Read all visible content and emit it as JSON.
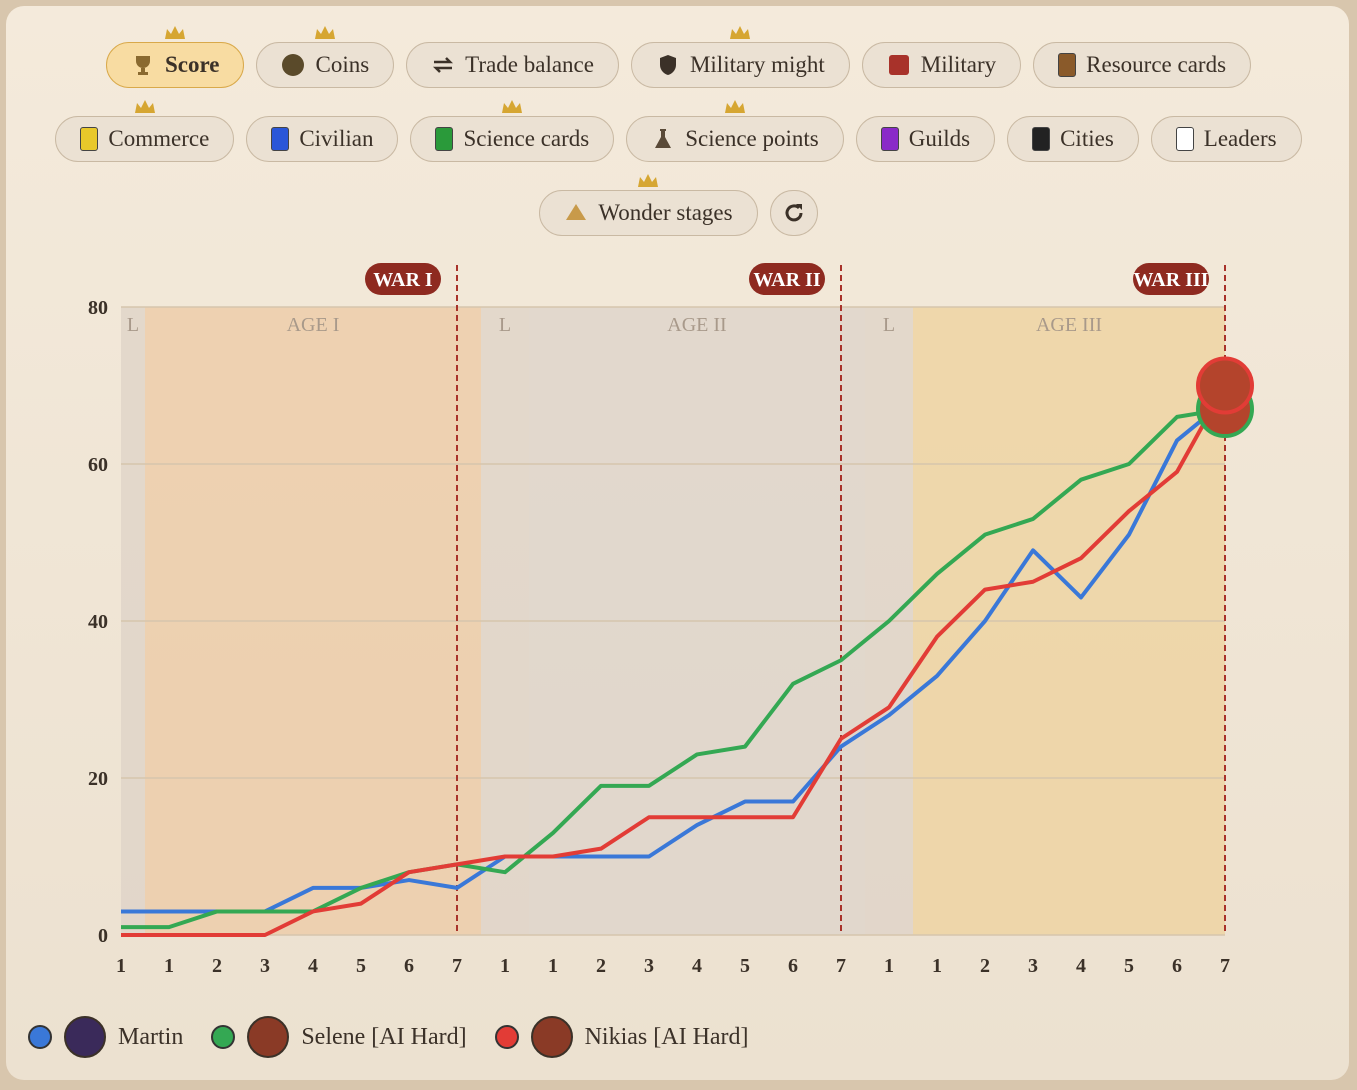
{
  "buttons": {
    "row1": [
      "Score",
      "Coins",
      "Trade balance",
      "Military might",
      "Military",
      "Resource cards"
    ],
    "row2": [
      "Commerce",
      "Civilian",
      "Science cards",
      "Science points",
      "Guilds",
      "Cities",
      "Leaders"
    ],
    "row3": [
      "Wonder stages"
    ]
  },
  "chart_data": {
    "type": "line",
    "categories": [
      "1",
      "1",
      "2",
      "3",
      "4",
      "5",
      "6",
      "7",
      "1",
      "1",
      "2",
      "3",
      "4",
      "5",
      "6",
      "7",
      "1",
      "1",
      "2",
      "3",
      "4",
      "5",
      "6",
      "7"
    ],
    "periods": [
      {
        "leader": "L",
        "label": "AGE I",
        "war": "WAR I",
        "color": "#ecc9a4"
      },
      {
        "leader": "L",
        "label": "AGE II",
        "war": "WAR II",
        "color": "#dcd3c9"
      },
      {
        "leader": "L",
        "label": "AGE III",
        "war": "WAR III",
        "color": "#eed29c"
      }
    ],
    "ylim": [
      0,
      80
    ],
    "yticks": [
      0,
      20,
      40,
      60,
      80
    ],
    "grid": true,
    "series": [
      {
        "name": "Martin",
        "color": "#3a78d8",
        "values": [
          3,
          3,
          3,
          3,
          6,
          6,
          7,
          6,
          10,
          10,
          10,
          10,
          14,
          17,
          17,
          24,
          28,
          33,
          40,
          49,
          43,
          51,
          63,
          68
        ]
      },
      {
        "name": "Selene [AI Hard]",
        "color": "#34a853",
        "values": [
          1,
          1,
          3,
          3,
          3,
          6,
          8,
          9,
          8,
          13,
          19,
          19,
          23,
          24,
          32,
          35,
          40,
          46,
          51,
          53,
          58,
          60,
          66,
          67
        ]
      },
      {
        "name": "Nikias [AI Hard]",
        "color": "#e23c36",
        "values": [
          0,
          0,
          0,
          0,
          3,
          4,
          8,
          9,
          10,
          10,
          11,
          15,
          15,
          15,
          15,
          25,
          29,
          38,
          44,
          45,
          48,
          54,
          59,
          70
        ]
      }
    ]
  }
}
